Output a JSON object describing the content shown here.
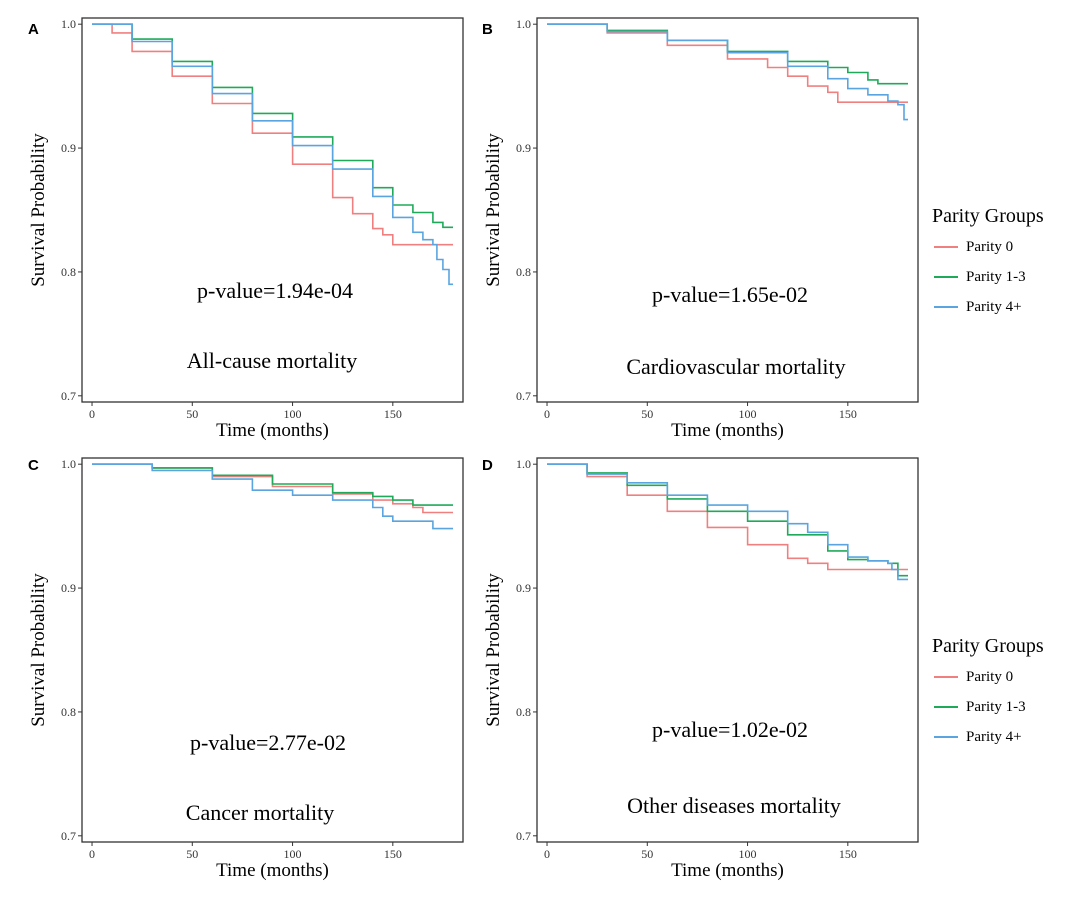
{
  "colors": {
    "parity0": "#f08080",
    "parity13": "#1faa59",
    "parity4p": "#5aa5df"
  },
  "legend": {
    "title": "Parity Groups",
    "entries": [
      "Parity 0",
      "Parity 1-3",
      "Parity 4+"
    ]
  },
  "chart_data": [
    {
      "type": "line",
      "panel": "A",
      "annotation": "p-value=1.94e-04",
      "subtitle": "All-cause mortality",
      "xlabel": "Time (months)",
      "ylabel": "Survival Probability",
      "xlim": [
        -5,
        185
      ],
      "ylim": [
        0.695,
        1.005
      ],
      "xticks": [
        "0",
        "50",
        "100",
        "150"
      ],
      "yticks": [
        "0.7",
        "0.8",
        "0.9",
        "1.0"
      ],
      "series": [
        {
          "name": "Parity 0",
          "x": [
            0,
            10,
            20,
            40,
            60,
            80,
            100,
            120,
            130,
            140,
            145,
            150,
            180
          ],
          "y": [
            1.0,
            0.993,
            0.978,
            0.958,
            0.936,
            0.912,
            0.887,
            0.86,
            0.847,
            0.835,
            0.83,
            0.822,
            0.822
          ]
        },
        {
          "name": "Parity 1-3",
          "x": [
            0,
            20,
            40,
            60,
            80,
            100,
            120,
            140,
            150,
            160,
            170,
            175,
            180
          ],
          "y": [
            1.0,
            0.988,
            0.97,
            0.949,
            0.928,
            0.909,
            0.89,
            0.868,
            0.854,
            0.848,
            0.84,
            0.836,
            0.836
          ]
        },
        {
          "name": "Parity 4+",
          "x": [
            0,
            20,
            40,
            60,
            80,
            100,
            120,
            140,
            150,
            160,
            165,
            170,
            172,
            175,
            178,
            180
          ],
          "y": [
            1.0,
            0.986,
            0.966,
            0.944,
            0.922,
            0.902,
            0.883,
            0.861,
            0.844,
            0.832,
            0.826,
            0.822,
            0.81,
            0.802,
            0.79,
            0.79
          ]
        }
      ]
    },
    {
      "type": "line",
      "panel": "B",
      "annotation": "p-value=1.65e-02",
      "subtitle": "Cardiovascular mortality",
      "xlabel": "Time (months)",
      "ylabel": "Survival Probability",
      "xlim": [
        -5,
        185
      ],
      "ylim": [
        0.695,
        1.005
      ],
      "xticks": [
        "0",
        "50",
        "100",
        "150"
      ],
      "yticks": [
        "0.7",
        "0.8",
        "0.9",
        "1.0"
      ],
      "series": [
        {
          "name": "Parity 0",
          "x": [
            0,
            30,
            60,
            90,
            110,
            120,
            130,
            140,
            145,
            150,
            180
          ],
          "y": [
            1.0,
            0.993,
            0.983,
            0.972,
            0.965,
            0.958,
            0.95,
            0.945,
            0.937,
            0.937,
            0.937
          ]
        },
        {
          "name": "Parity 1-3",
          "x": [
            0,
            30,
            60,
            90,
            120,
            140,
            150,
            160,
            165,
            170,
            180
          ],
          "y": [
            1.0,
            0.995,
            0.987,
            0.978,
            0.97,
            0.965,
            0.961,
            0.955,
            0.952,
            0.952,
            0.952
          ]
        },
        {
          "name": "Parity 4+",
          "x": [
            0,
            30,
            60,
            90,
            120,
            140,
            150,
            160,
            170,
            175,
            178,
            180
          ],
          "y": [
            1.0,
            0.994,
            0.987,
            0.977,
            0.966,
            0.956,
            0.948,
            0.943,
            0.938,
            0.935,
            0.923,
            0.923
          ]
        }
      ]
    },
    {
      "type": "line",
      "panel": "C",
      "annotation": "p-value=2.77e-02",
      "subtitle": "Cancer mortality",
      "xlabel": "Time (months)",
      "ylabel": "Survival Probability",
      "xlim": [
        -5,
        185
      ],
      "ylim": [
        0.695,
        1.005
      ],
      "xticks": [
        "0",
        "50",
        "100",
        "150"
      ],
      "yticks": [
        "0.7",
        "0.8",
        "0.9",
        "1.0"
      ],
      "series": [
        {
          "name": "Parity 0",
          "x": [
            0,
            30,
            60,
            90,
            120,
            140,
            150,
            160,
            165,
            180
          ],
          "y": [
            1.0,
            0.997,
            0.99,
            0.982,
            0.976,
            0.971,
            0.968,
            0.965,
            0.961,
            0.961
          ]
        },
        {
          "name": "Parity 1-3",
          "x": [
            0,
            30,
            60,
            90,
            120,
            140,
            150,
            160,
            180
          ],
          "y": [
            1.0,
            0.997,
            0.991,
            0.984,
            0.977,
            0.974,
            0.971,
            0.967,
            0.967
          ]
        },
        {
          "name": "Parity 4+",
          "x": [
            0,
            30,
            60,
            80,
            100,
            120,
            140,
            145,
            150,
            155,
            165,
            170,
            180
          ],
          "y": [
            1.0,
            0.995,
            0.988,
            0.979,
            0.975,
            0.971,
            0.965,
            0.958,
            0.954,
            0.954,
            0.954,
            0.948,
            0.948
          ]
        }
      ]
    },
    {
      "type": "line",
      "panel": "D",
      "annotation": "p-value=1.02e-02",
      "subtitle": "Other diseases mortality",
      "xlabel": "Time (months)",
      "ylabel": "Survival Probability",
      "xlim": [
        -5,
        185
      ],
      "ylim": [
        0.695,
        1.005
      ],
      "xticks": [
        "0",
        "50",
        "100",
        "150"
      ],
      "yticks": [
        "0.7",
        "0.8",
        "0.9",
        "1.0"
      ],
      "series": [
        {
          "name": "Parity 0",
          "x": [
            0,
            20,
            40,
            60,
            80,
            100,
            120,
            130,
            140,
            150,
            180
          ],
          "y": [
            1.0,
            0.99,
            0.975,
            0.962,
            0.949,
            0.935,
            0.924,
            0.92,
            0.915,
            0.915,
            0.915
          ]
        },
        {
          "name": "Parity 1-3",
          "x": [
            0,
            20,
            40,
            60,
            80,
            100,
            120,
            140,
            150,
            160,
            170,
            175,
            180
          ],
          "y": [
            1.0,
            0.993,
            0.983,
            0.972,
            0.962,
            0.954,
            0.943,
            0.93,
            0.923,
            0.922,
            0.92,
            0.91,
            0.91
          ]
        },
        {
          "name": "Parity 4+",
          "x": [
            0,
            20,
            40,
            60,
            80,
            100,
            120,
            130,
            140,
            150,
            160,
            170,
            172,
            175,
            180
          ],
          "y": [
            1.0,
            0.992,
            0.985,
            0.975,
            0.967,
            0.962,
            0.952,
            0.945,
            0.935,
            0.925,
            0.922,
            0.92,
            0.915,
            0.907,
            0.907
          ]
        }
      ]
    }
  ]
}
